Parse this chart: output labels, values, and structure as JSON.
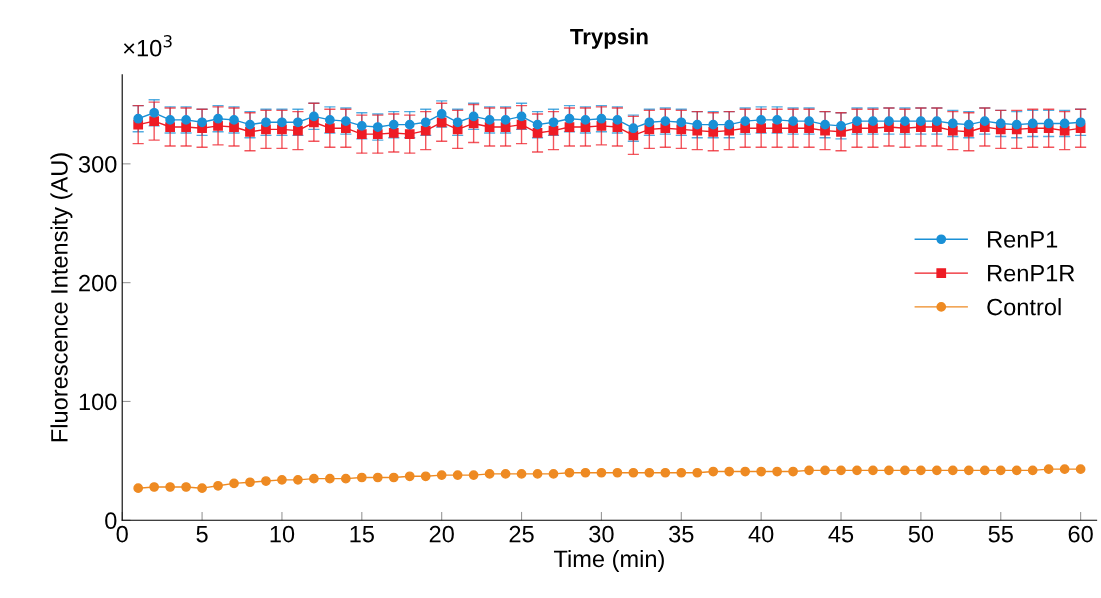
{
  "chart_data": {
    "type": "line",
    "title": "Trypsin",
    "xlabel": "Time (min)",
    "ylabel": "Fluorescence Intensity (AU)",
    "annotations": [
      "×10$^{3}$"
    ],
    "x": [
      1,
      2,
      3,
      4,
      5,
      6,
      7,
      8,
      9,
      10,
      11,
      12,
      13,
      14,
      15,
      16,
      17,
      18,
      19,
      20,
      21,
      22,
      23,
      24,
      25,
      26,
      27,
      28,
      29,
      30,
      31,
      32,
      33,
      34,
      35,
      36,
      37,
      38,
      39,
      40,
      41,
      42,
      43,
      44,
      45,
      46,
      47,
      48,
      49,
      50,
      51,
      52,
      53,
      54,
      55,
      56,
      57,
      58,
      59,
      60
    ],
    "series": [
      {
        "name": "RenP1",
        "color": "#1a90d6",
        "marker": "circle",
        "values": [
          338,
          343,
          337,
          337,
          335,
          338,
          337,
          333,
          335,
          335,
          335,
          340,
          337,
          336,
          332,
          331,
          333,
          333,
          335,
          342,
          335,
          340,
          337,
          337,
          340,
          333,
          335,
          338,
          337,
          338,
          337,
          330,
          335,
          336,
          335,
          333,
          333,
          333,
          336,
          337,
          337,
          336,
          336,
          333,
          332,
          336,
          336,
          336,
          336,
          336,
          336,
          334,
          333,
          336,
          334,
          333,
          334,
          334,
          334,
          335
        ],
        "errors": [
          11,
          11,
          11,
          11,
          11,
          11,
          11,
          11,
          11,
          11,
          11,
          11,
          11,
          11,
          11,
          11,
          11,
          11,
          11,
          11,
          11,
          11,
          11,
          11,
          11,
          11,
          11,
          11,
          11,
          11,
          11,
          11,
          11,
          11,
          11,
          11,
          11,
          11,
          11,
          11,
          11,
          11,
          11,
          11,
          11,
          11,
          11,
          11,
          11,
          11,
          11,
          11,
          11,
          11,
          11,
          11,
          11,
          11,
          11,
          11
        ]
      },
      {
        "name": "RenP1R",
        "color": "#ee1c25",
        "marker": "square",
        "values": [
          333,
          336,
          331,
          331,
          330,
          332,
          331,
          327,
          329,
          329,
          328,
          335,
          330,
          330,
          325,
          325,
          326,
          325,
          328,
          335,
          329,
          334,
          331,
          331,
          333,
          326,
          328,
          331,
          331,
          332,
          331,
          324,
          329,
          330,
          329,
          328,
          327,
          328,
          330,
          330,
          330,
          330,
          330,
          328,
          327,
          330,
          330,
          331,
          330,
          331,
          331,
          328,
          327,
          331,
          329,
          329,
          330,
          330,
          328,
          330
        ],
        "errors": [
          16,
          16,
          16,
          16,
          16,
          16,
          16,
          16,
          16,
          16,
          16,
          16,
          16,
          16,
          16,
          16,
          16,
          16,
          16,
          16,
          16,
          16,
          16,
          16,
          16,
          16,
          16,
          16,
          16,
          16,
          16,
          16,
          16,
          16,
          16,
          16,
          16,
          16,
          16,
          16,
          16,
          16,
          16,
          16,
          16,
          16,
          16,
          16,
          16,
          16,
          16,
          16,
          16,
          16,
          16,
          16,
          16,
          16,
          16,
          16
        ]
      },
      {
        "name": "Control",
        "color": "#ee8a22",
        "marker": "circle",
        "values": [
          27,
          28,
          28,
          28,
          27,
          29,
          31,
          32,
          33,
          34,
          34,
          35,
          35,
          35,
          36,
          36,
          36,
          37,
          37,
          38,
          38,
          38,
          39,
          39,
          39,
          39,
          39,
          40,
          40,
          40,
          40,
          40,
          40,
          40,
          40,
          40,
          41,
          41,
          41,
          41,
          41,
          41,
          42,
          42,
          42,
          42,
          42,
          42,
          42,
          42,
          42,
          42,
          42,
          42,
          42,
          42,
          42,
          43,
          43,
          43
        ]
      }
    ],
    "xlim": [
      0,
      61
    ],
    "ylim": [
      0,
      375
    ],
    "xticks": [
      0,
      5,
      10,
      15,
      20,
      25,
      30,
      35,
      40,
      45,
      50,
      55,
      60
    ],
    "yticks": [
      0,
      100,
      200,
      300
    ],
    "grid": false,
    "legend": "right"
  }
}
